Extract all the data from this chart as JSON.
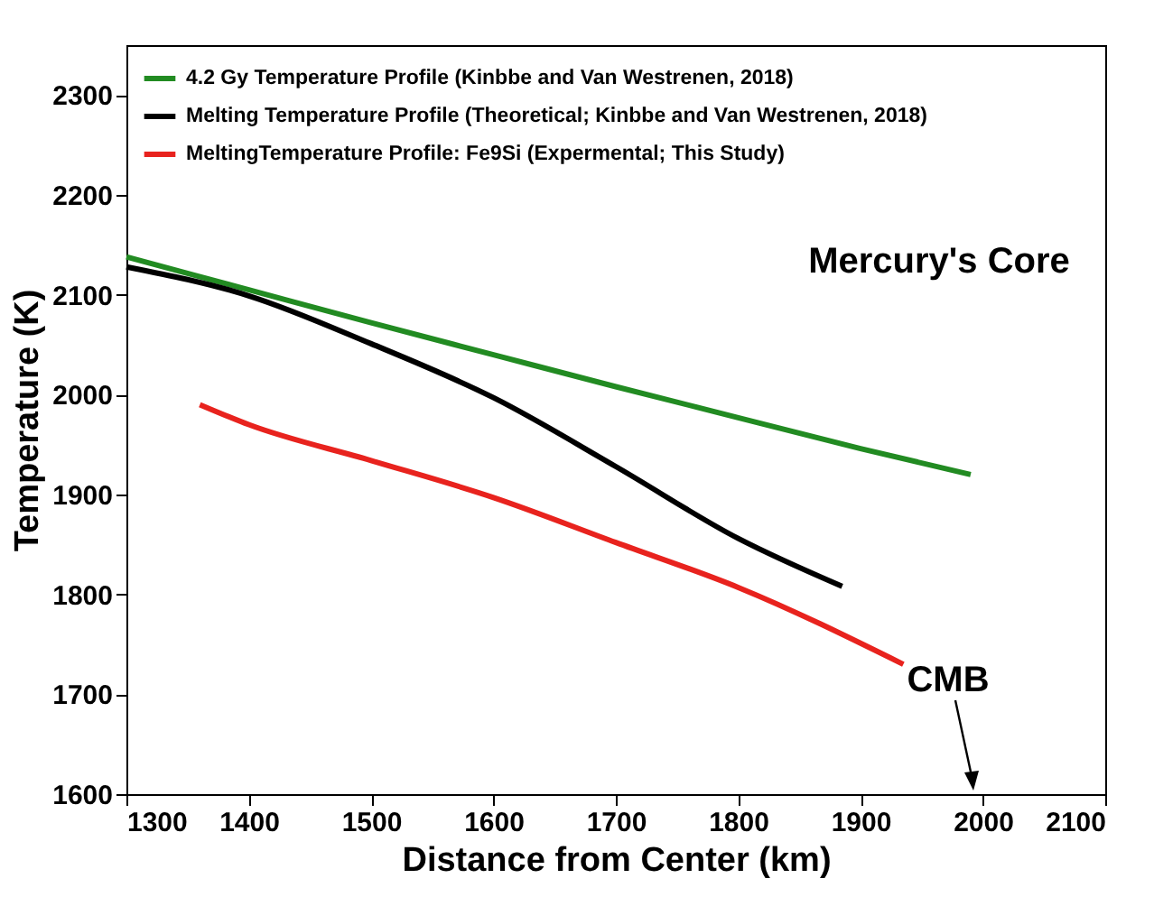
{
  "chart_data": {
    "type": "line",
    "xlabel": "Distance from Center (km)",
    "ylabel": "Temperature (K)",
    "xlim": [
      1300,
      2100
    ],
    "xticks": [
      1300,
      1400,
      1500,
      1600,
      1700,
      1800,
      1900,
      2000,
      2100
    ],
    "ylim": [
      1600,
      2350
    ],
    "yticks": [
      1600,
      1700,
      1800,
      1900,
      2000,
      2100,
      2200,
      2300
    ],
    "legend": "top left",
    "grid": false,
    "series": [
      {
        "name": "4.2 Gy Temperature Profile (Kinbbe and Van Westrenen, 2018)",
        "color": "#228b22",
        "x": [
          1300,
          1400,
          1500,
          1600,
          1700,
          1800,
          1900,
          1990
        ],
        "values": [
          2138,
          2105,
          2072,
          2040,
          2008,
          1977,
          1946,
          1920
        ]
      },
      {
        "name": "Melting Temperature Profile (Theoretical; Kinbbe and Van Westrenen, 2018)",
        "color": "#000000",
        "x": [
          1300,
          1400,
          1500,
          1600,
          1700,
          1800,
          1885
        ],
        "values": [
          2128,
          2099,
          2051,
          1997,
          1928,
          1856,
          1808
        ]
      },
      {
        "name": "MeltingTemperature Profile: Fe9Si (Expermental; This Study)",
        "color": "#e8231e",
        "x": [
          1360,
          1400,
          1500,
          1600,
          1700,
          1800,
          1935
        ],
        "values": [
          1990,
          1970,
          1934,
          1897,
          1852,
          1807,
          1730
        ]
      }
    ],
    "annotations": [
      "Mercury's Core",
      "CMB"
    ]
  }
}
